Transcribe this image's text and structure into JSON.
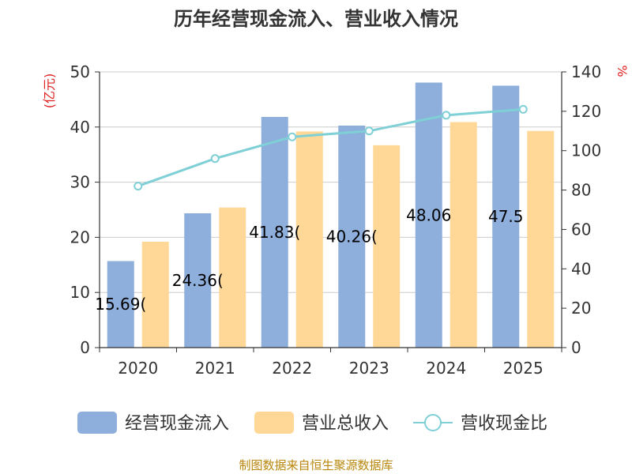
{
  "chart_data": {
    "type": "bar",
    "title": "历年经营现金流入、营业收入情况",
    "categories": [
      "2020",
      "2021",
      "2022",
      "2023",
      "2024",
      "2025"
    ],
    "series": [
      {
        "name": "经营现金流入",
        "kind": "bar",
        "axis": "left",
        "color": "#8eaedb",
        "values": [
          15.69,
          24.36,
          41.83,
          40.26,
          48.06,
          47.5
        ],
        "data_labels": [
          "15.69(",
          "24.36(",
          "41.83(",
          "40.26(",
          "48.06",
          "47.5"
        ]
      },
      {
        "name": "营业总收入",
        "kind": "bar",
        "axis": "left",
        "color": "#ffd898",
        "values": [
          19.2,
          25.4,
          39.2,
          36.7,
          40.9,
          39.3
        ]
      },
      {
        "name": "营收现金比",
        "kind": "line",
        "axis": "right",
        "color": "#7fd0d6",
        "values": [
          82,
          96,
          107,
          110,
          118,
          121
        ]
      }
    ],
    "y_left": {
      "label": "(亿元)",
      "min": 0,
      "max": 50,
      "ticks": [
        0,
        10,
        20,
        30,
        40,
        50
      ]
    },
    "y_right": {
      "label": "%",
      "min": 0,
      "max": 140,
      "ticks": [
        0,
        20,
        40,
        60,
        80,
        100,
        120,
        140
      ]
    },
    "grid": true,
    "legend_position": "bottom"
  },
  "source": "制图数据来自恒生聚源数据库"
}
